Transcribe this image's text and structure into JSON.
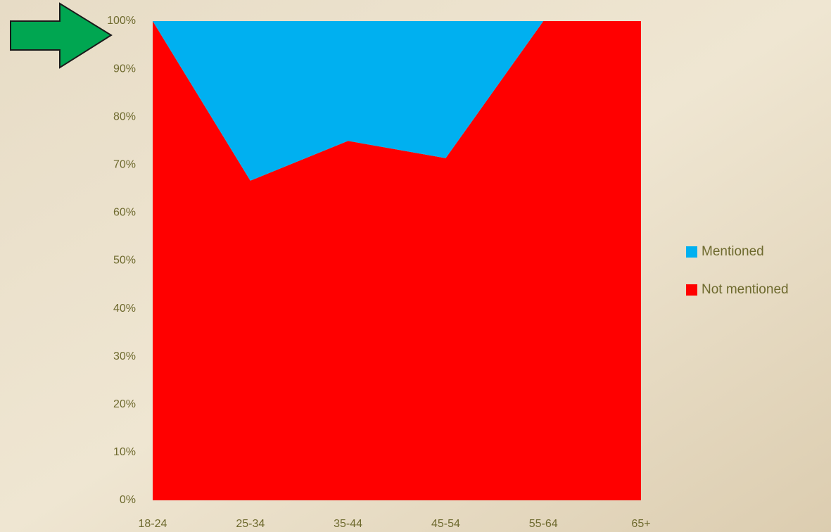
{
  "chart_data": {
    "type": "stacked_area",
    "categories": [
      "18-24",
      "25-34",
      "35-44",
      "45-54",
      "55-64",
      "65+"
    ],
    "series": [
      {
        "name": "Not mentioned",
        "color": "#ff0000",
        "values": [
          100,
          66.7,
          75,
          71.4,
          100,
          100
        ]
      },
      {
        "name": "Mentioned",
        "color": "#00b0f0",
        "values": [
          0,
          33.3,
          25,
          28.6,
          0,
          0
        ]
      }
    ],
    "ylim": [
      0,
      100
    ],
    "yticks": [
      {
        "value": 0,
        "label": "0%"
      },
      {
        "value": 10,
        "label": "10%"
      },
      {
        "value": 20,
        "label": "20%"
      },
      {
        "value": 30,
        "label": "30%"
      },
      {
        "value": 40,
        "label": "40%"
      },
      {
        "value": 50,
        "label": "50%"
      },
      {
        "value": 60,
        "label": "60%"
      },
      {
        "value": 70,
        "label": "70%"
      },
      {
        "value": 80,
        "label": "80%"
      },
      {
        "value": 90,
        "label": "90%"
      },
      {
        "value": 100,
        "label": "100%"
      }
    ],
    "legend": "right"
  }
}
